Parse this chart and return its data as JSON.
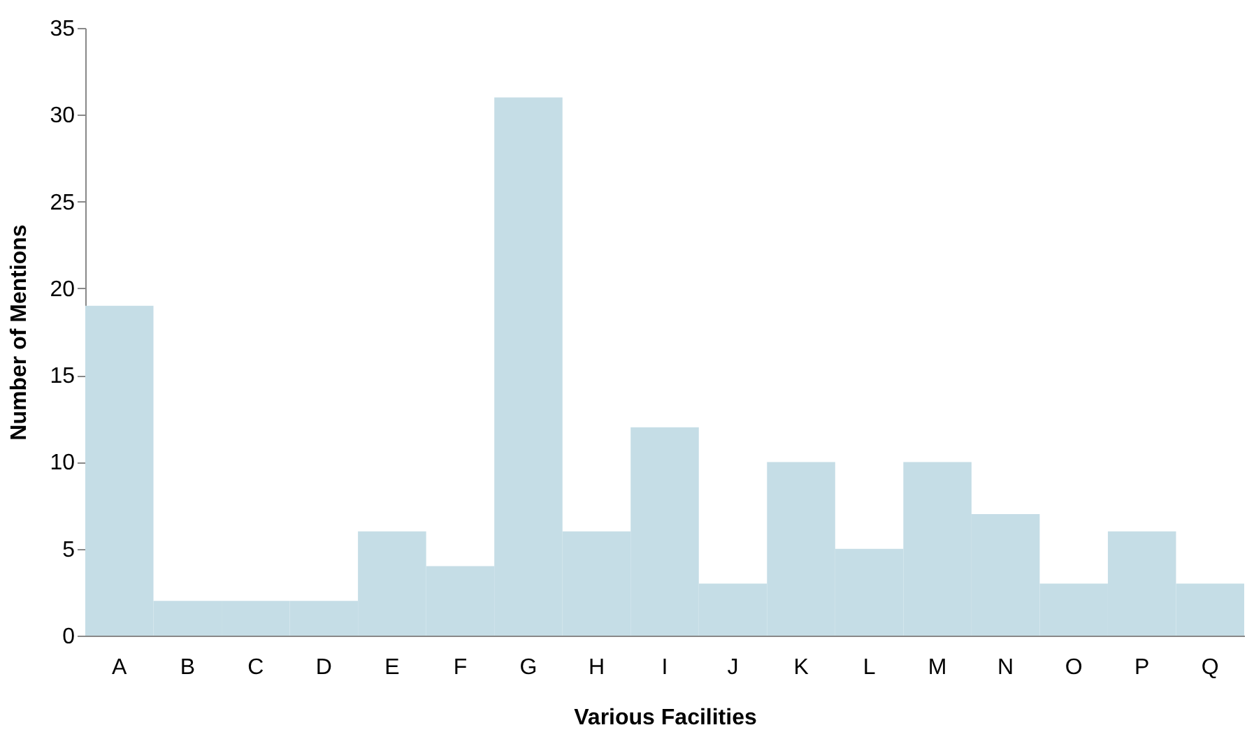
{
  "chart_data": {
    "type": "bar",
    "xlabel": "Various Facilities",
    "ylabel": "Number of Mentions",
    "categories": [
      "A",
      "B",
      "C",
      "D",
      "E",
      "F",
      "G",
      "H",
      "I",
      "J",
      "K",
      "L",
      "M",
      "N",
      "O",
      "P",
      "Q"
    ],
    "values": [
      19,
      2,
      2,
      2,
      6,
      4,
      31,
      6,
      12,
      3,
      10,
      5,
      10,
      7,
      3,
      6,
      3
    ],
    "color": "#c5dde6",
    "ylim": [
      0,
      35
    ],
    "yticks": [
      0,
      5,
      10,
      15,
      20,
      25,
      30,
      35
    ],
    "grid": false
  }
}
